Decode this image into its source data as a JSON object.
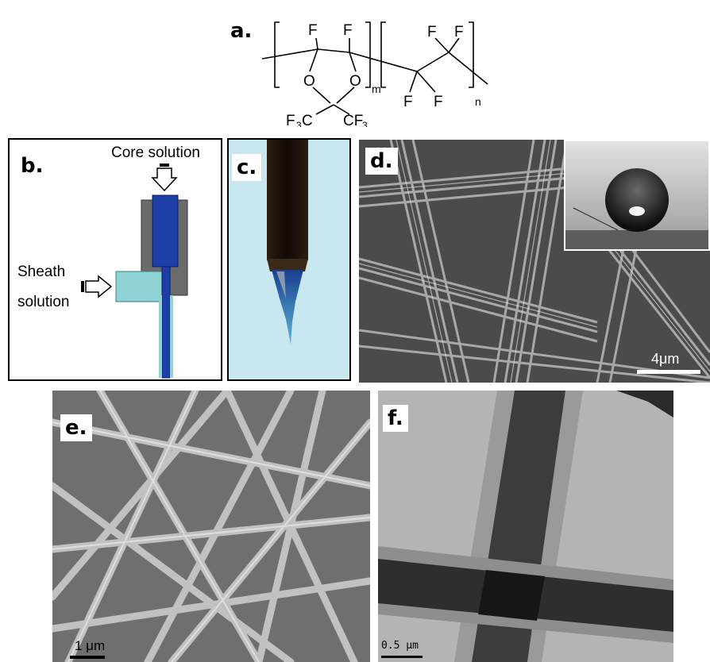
{
  "panels": {
    "a": {
      "letter": "a.",
      "subscript_m": "m",
      "subscript_n": "n"
    },
    "b": {
      "letter": "b.",
      "core_label": "Core solution",
      "sheath_label_1": "Sheath",
      "sheath_label_2": "solution"
    },
    "c": {
      "letter": "c."
    },
    "d": {
      "letter": "d.",
      "scale_label": "4μm"
    },
    "e": {
      "letter": "e.",
      "scale_label": "1 μm"
    },
    "f": {
      "letter": "f.",
      "scale_label": "0.5 μm"
    }
  },
  "colors": {
    "core_blue": "#1f3fa8",
    "sheath_cyan": "#8fd3d6",
    "needle_bg": "#c9e7ee",
    "housing_gray": "#6b6b6b"
  }
}
